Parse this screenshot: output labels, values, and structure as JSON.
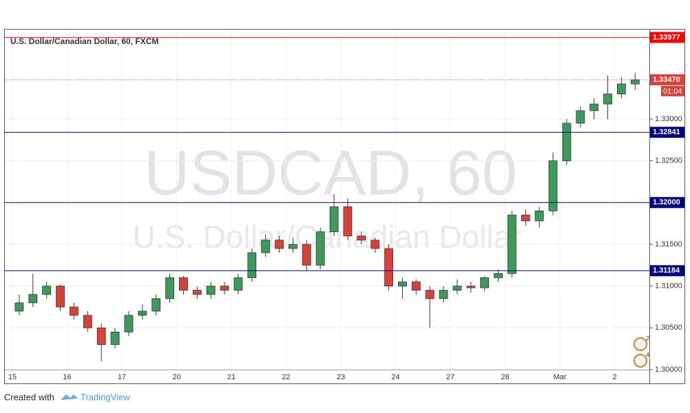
{
  "chart_data": {
    "type": "candlestick",
    "title": "U.S. Dollar/Canadian Dollar, 60, FXCM",
    "watermark": "USDCAD, 60",
    "watermark_subtitle": "U.S. Dollar/Canadian Dollar",
    "categories": [
      "15",
      null,
      null,
      null,
      "16",
      null,
      null,
      null,
      "17",
      null,
      null,
      null,
      "20",
      null,
      null,
      null,
      "21",
      null,
      null,
      null,
      "22",
      null,
      null,
      null,
      "23",
      null,
      null,
      null,
      "24",
      null,
      null,
      null,
      "27",
      null,
      null,
      null,
      "28",
      null,
      null,
      null,
      "Mar",
      null,
      null,
      null,
      "2",
      null
    ],
    "open": [
      1.307,
      1.308,
      1.309,
      1.31,
      1.3075,
      1.3065,
      1.305,
      1.303,
      1.3045,
      1.3065,
      1.307,
      1.3085,
      1.311,
      1.3095,
      1.309,
      1.31,
      1.3095,
      1.311,
      1.314,
      1.3155,
      1.3145,
      1.315,
      1.3125,
      1.3165,
      1.3195,
      1.316,
      1.3155,
      1.3145,
      1.31,
      1.3105,
      1.3095,
      1.3085,
      1.3095,
      1.31,
      1.3098,
      1.311,
      1.3115,
      1.3185,
      1.3178,
      1.319,
      1.325,
      1.3295,
      1.331,
      1.3318,
      1.333,
      1.3342
    ],
    "high": [
      1.309,
      1.3115,
      1.3105,
      1.3102,
      1.308,
      1.307,
      1.3055,
      1.305,
      1.307,
      1.3078,
      1.309,
      1.3115,
      1.3112,
      1.31,
      1.3105,
      1.3105,
      1.3115,
      1.3145,
      1.3162,
      1.316,
      1.3158,
      1.3155,
      1.317,
      1.321,
      1.3205,
      1.3165,
      1.3158,
      1.315,
      1.311,
      1.3108,
      1.31,
      1.31,
      1.3108,
      1.3105,
      1.3112,
      1.312,
      1.319,
      1.3192,
      1.3195,
      1.326,
      1.33,
      1.3315,
      1.3325,
      1.3352,
      1.335,
      1.3355
    ],
    "low": [
      1.3065,
      1.3075,
      1.3085,
      1.307,
      1.306,
      1.3045,
      1.301,
      1.3025,
      1.304,
      1.306,
      1.3065,
      1.308,
      1.309,
      1.3085,
      1.3085,
      1.309,
      1.309,
      1.3105,
      1.3135,
      1.314,
      1.314,
      1.3118,
      1.312,
      1.316,
      1.3155,
      1.315,
      1.314,
      1.3095,
      1.3085,
      1.309,
      1.305,
      1.308,
      1.309,
      1.3092,
      1.3094,
      1.3105,
      1.311,
      1.3172,
      1.317,
      1.3185,
      1.3245,
      1.329,
      1.33,
      1.33,
      1.3325,
      1.3335
    ],
    "close": [
      1.308,
      1.309,
      1.31,
      1.3075,
      1.3065,
      1.305,
      1.303,
      1.3045,
      1.3065,
      1.307,
      1.3085,
      1.311,
      1.3095,
      1.309,
      1.31,
      1.3095,
      1.311,
      1.314,
      1.3155,
      1.3145,
      1.315,
      1.3125,
      1.3165,
      1.3195,
      1.316,
      1.3155,
      1.3145,
      1.31,
      1.3105,
      1.3095,
      1.3085,
      1.3095,
      1.31,
      1.3098,
      1.311,
      1.3115,
      1.3185,
      1.3178,
      1.319,
      1.325,
      1.3295,
      1.331,
      1.3318,
      1.333,
      1.3342,
      1.3347
    ],
    "up_color": "#3d9a5a",
    "down_color": "#d9423a",
    "ylim": [
      1.29975,
      1.34079
    ],
    "yticks": [
      {
        "value": 1.3,
        "label": "1.30000"
      },
      {
        "value": 1.305,
        "label": "1.30500"
      },
      {
        "value": 1.31,
        "label": "1.31000"
      },
      {
        "value": 1.315,
        "label": "1.31500"
      },
      {
        "value": 1.32,
        "label": "1.32000"
      },
      {
        "value": 1.325,
        "label": "1.32500"
      },
      {
        "value": 1.33,
        "label": "1.33000"
      }
    ],
    "grid": true,
    "price_lines": [
      {
        "value": 1.33977,
        "label": "1.33977",
        "color": "#ff0000"
      },
      {
        "value": 1.32841,
        "label": "1.32841",
        "color": "#000080"
      },
      {
        "value": 1.32,
        "label": "1.32000",
        "color": "#000080"
      },
      {
        "value": 1.31184,
        "label": "1.31184",
        "color": "#000080"
      }
    ],
    "last_price": {
      "value": 1.3347,
      "label": "1.33470",
      "countdown": "01:04",
      "color": "#d9423a"
    },
    "event_markers": [
      "2",
      "4"
    ]
  },
  "footer": {
    "prefix": "Created with",
    "brand": "TradingView"
  }
}
